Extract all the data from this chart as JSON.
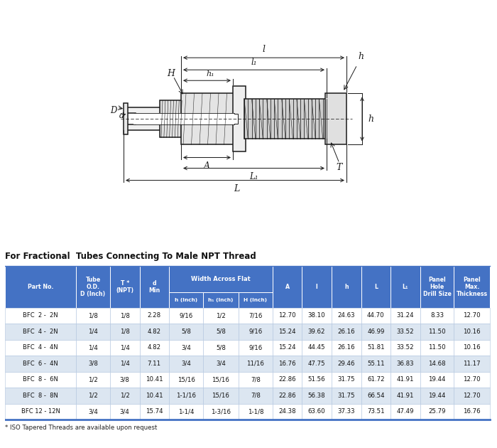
{
  "title": "For Fractional  Tubes Connecting To Male NPT Thread",
  "footnote": "* ISO Tapered Threads are available upon request",
  "bg_color": "#ffffff",
  "header_bg": "#4472c4",
  "header_text": "#ffffff",
  "alt_row": "#dce6f1",
  "white_row": "#ffffff",
  "rows": [
    [
      "BFC  2 -  2N",
      "1/8",
      "1/8",
      "2.28",
      "9/16",
      "1/2",
      "7/16",
      "12.70",
      "38.10",
      "24.63",
      "44.70",
      "31.24",
      "8.33",
      "12.70"
    ],
    [
      "BFC  4 -  2N",
      "1/4",
      "1/8",
      "4.82",
      "5/8",
      "5/8",
      "9/16",
      "15.24",
      "39.62",
      "26.16",
      "46.99",
      "33.52",
      "11.50",
      "10.16"
    ],
    [
      "BFC  4 -  4N",
      "1/4",
      "1/4",
      "4.82",
      "3/4",
      "5/8",
      "9/16",
      "15.24",
      "44.45",
      "26.16",
      "51.81",
      "33.52",
      "11.50",
      "10.16"
    ],
    [
      "BFC  6 -  4N",
      "3/8",
      "1/4",
      "7.11",
      "3/4",
      "3/4",
      "11/16",
      "16.76",
      "47.75",
      "29.46",
      "55.11",
      "36.83",
      "14.68",
      "11.17"
    ],
    [
      "BFC  8 -  6N",
      "1/2",
      "3/8",
      "10.41",
      "15/16",
      "15/16",
      "7/8",
      "22.86",
      "51.56",
      "31.75",
      "61.72",
      "41.91",
      "19.44",
      "12.70"
    ],
    [
      "BFC  8 -  8N",
      "1/2",
      "1/2",
      "10.41",
      "1-1/16",
      "15/16",
      "7/8",
      "22.86",
      "56.38",
      "31.75",
      "66.54",
      "41.91",
      "19.44",
      "12.70"
    ],
    [
      "BFC 12 - 12N",
      "3/4",
      "3/4",
      "15.74",
      "1-1/4",
      "1-3/16",
      "1-1/8",
      "24.38",
      "63.60",
      "37.33",
      "73.51",
      "47.49",
      "25.79",
      "16.76"
    ]
  ]
}
